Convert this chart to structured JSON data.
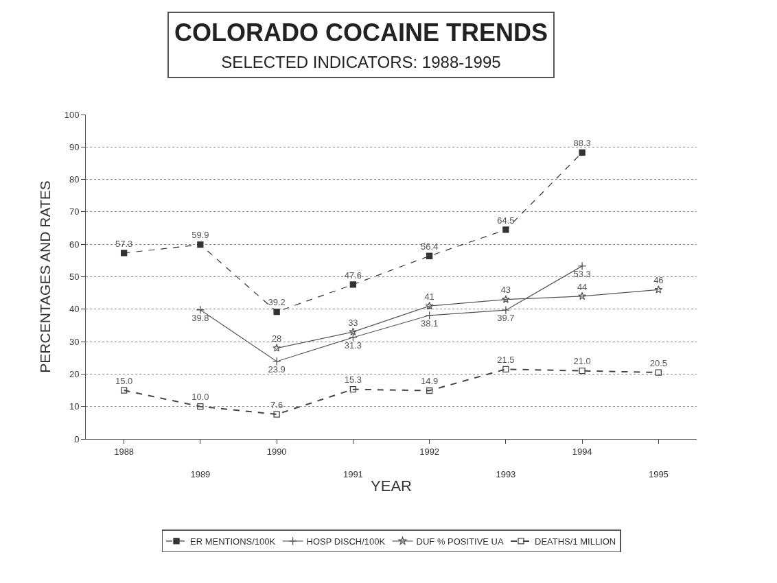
{
  "chart_data": {
    "type": "line",
    "title": "COLORADO COCAINE TRENDS",
    "subtitle": "SELECTED INDICATORS: 1988-1995",
    "xlabel": "YEAR",
    "ylabel": "PERCENTAGES AND RATES",
    "categories": [
      "1988",
      "1989",
      "1990",
      "1991",
      "1992",
      "1993",
      "1994",
      "1995"
    ],
    "series": [
      {
        "name": "ER MENTIONS/100K",
        "color": "#333333",
        "marker": "square",
        "line_style": "dashed",
        "values": [
          57.3,
          59.9,
          39.2,
          47.6,
          56.4,
          64.5,
          88.3,
          null
        ],
        "value_labels": [
          "57.3",
          "59.9",
          "39.2",
          "47.6",
          "56.4",
          "64.5",
          "88.3",
          null
        ]
      },
      {
        "name": "HOSP DISCH/100K",
        "color": "#555555",
        "marker": "cross",
        "line_style": "solid",
        "values": [
          null,
          39.8,
          23.9,
          31.3,
          38.1,
          39.7,
          53.3,
          null
        ],
        "value_labels": [
          null,
          "39.8",
          "23.9",
          "31.3",
          "38.1",
          "39.7",
          "53.3",
          null
        ]
      },
      {
        "name": "DUF % POSITIVE UA",
        "color": "#555555",
        "marker": "star",
        "line_style": "solid",
        "values": [
          null,
          null,
          28,
          33,
          41,
          43,
          44,
          46
        ],
        "value_labels": [
          null,
          null,
          "28",
          "33",
          "41",
          "43",
          "44",
          "46"
        ]
      },
      {
        "name": "DEATHS/1 MILLION",
        "color": "#444444",
        "marker": "square-open",
        "line_style": "dashed",
        "values": [
          15.0,
          10.0,
          7.6,
          15.3,
          14.9,
          21.5,
          21.0,
          20.5
        ],
        "value_labels": [
          "15.0",
          "10.0",
          "7.6",
          "15.3",
          "14.9",
          "21.5",
          "21.0",
          "20.5"
        ]
      }
    ],
    "ylim": [
      0,
      100
    ],
    "yticks": [
      0,
      10,
      20,
      30,
      40,
      50,
      60,
      70,
      80,
      90,
      100
    ],
    "grid": "y",
    "legend": "bottom"
  }
}
